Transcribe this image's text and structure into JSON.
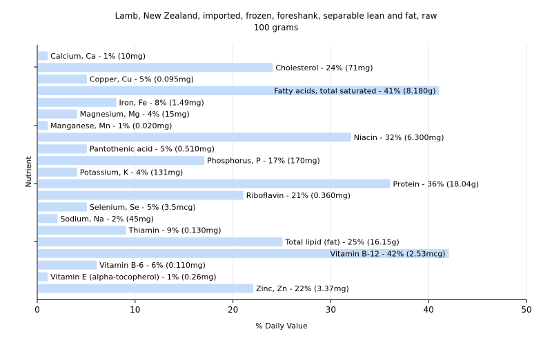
{
  "chart_data": {
    "type": "bar",
    "orientation": "horizontal",
    "title": "Lamb, New Zealand, imported, frozen, foreshank, separable lean and fat, raw",
    "subtitle": "100 grams",
    "xlabel": "% Daily Value",
    "ylabel": "Nutrient",
    "xlim": [
      0,
      50
    ],
    "xticks": [
      "0",
      "10",
      "20",
      "30",
      "40",
      "50"
    ],
    "grid": true,
    "bar_color": "#c5dcfb",
    "categories": [
      "Calcium, Ca",
      "Cholesterol",
      "Copper, Cu",
      "Fatty acids, total saturated",
      "Iron, Fe",
      "Magnesium, Mg",
      "Manganese, Mn",
      "Niacin",
      "Pantothenic acid",
      "Phosphorus, P",
      "Potassium, K",
      "Protein",
      "Riboflavin",
      "Selenium, Se",
      "Sodium, Na",
      "Thiamin",
      "Total lipid (fat)",
      "Vitamin B-12",
      "Vitamin B-6",
      "Vitamin E (alpha-tocopherol)",
      "Zinc, Zn"
    ],
    "values": [
      1,
      24,
      5,
      41,
      8,
      4,
      1,
      32,
      5,
      17,
      4,
      36,
      21,
      5,
      2,
      9,
      25,
      42,
      6,
      1,
      22
    ],
    "labels": [
      "Calcium, Ca - 1% (10mg)",
      "Cholesterol - 24% (71mg)",
      "Copper, Cu - 5% (0.095mg)",
      "Fatty acids, total saturated - 41% (8.180g)",
      "Iron, Fe - 8% (1.49mg)",
      "Magnesium, Mg - 4% (15mg)",
      "Manganese, Mn - 1% (0.020mg)",
      "Niacin - 32% (6.300mg)",
      "Pantothenic acid - 5% (0.510mg)",
      "Phosphorus, P - 17% (170mg)",
      "Potassium, K - 4% (131mg)",
      "Protein - 36% (18.04g)",
      "Riboflavin - 21% (0.360mg)",
      "Selenium, Se - 5% (3.5mcg)",
      "Sodium, Na - 2% (45mg)",
      "Thiamin - 9% (0.130mg)",
      "Total lipid (fat) - 25% (16.15g)",
      "Vitamin B-12 - 42% (2.53mcg)",
      "Vitamin B-6 - 6% (0.110mg)",
      "Vitamin E (alpha-tocopherol) - 1% (0.26mg)",
      "Zinc, Zn - 22% (3.37mg)"
    ]
  }
}
